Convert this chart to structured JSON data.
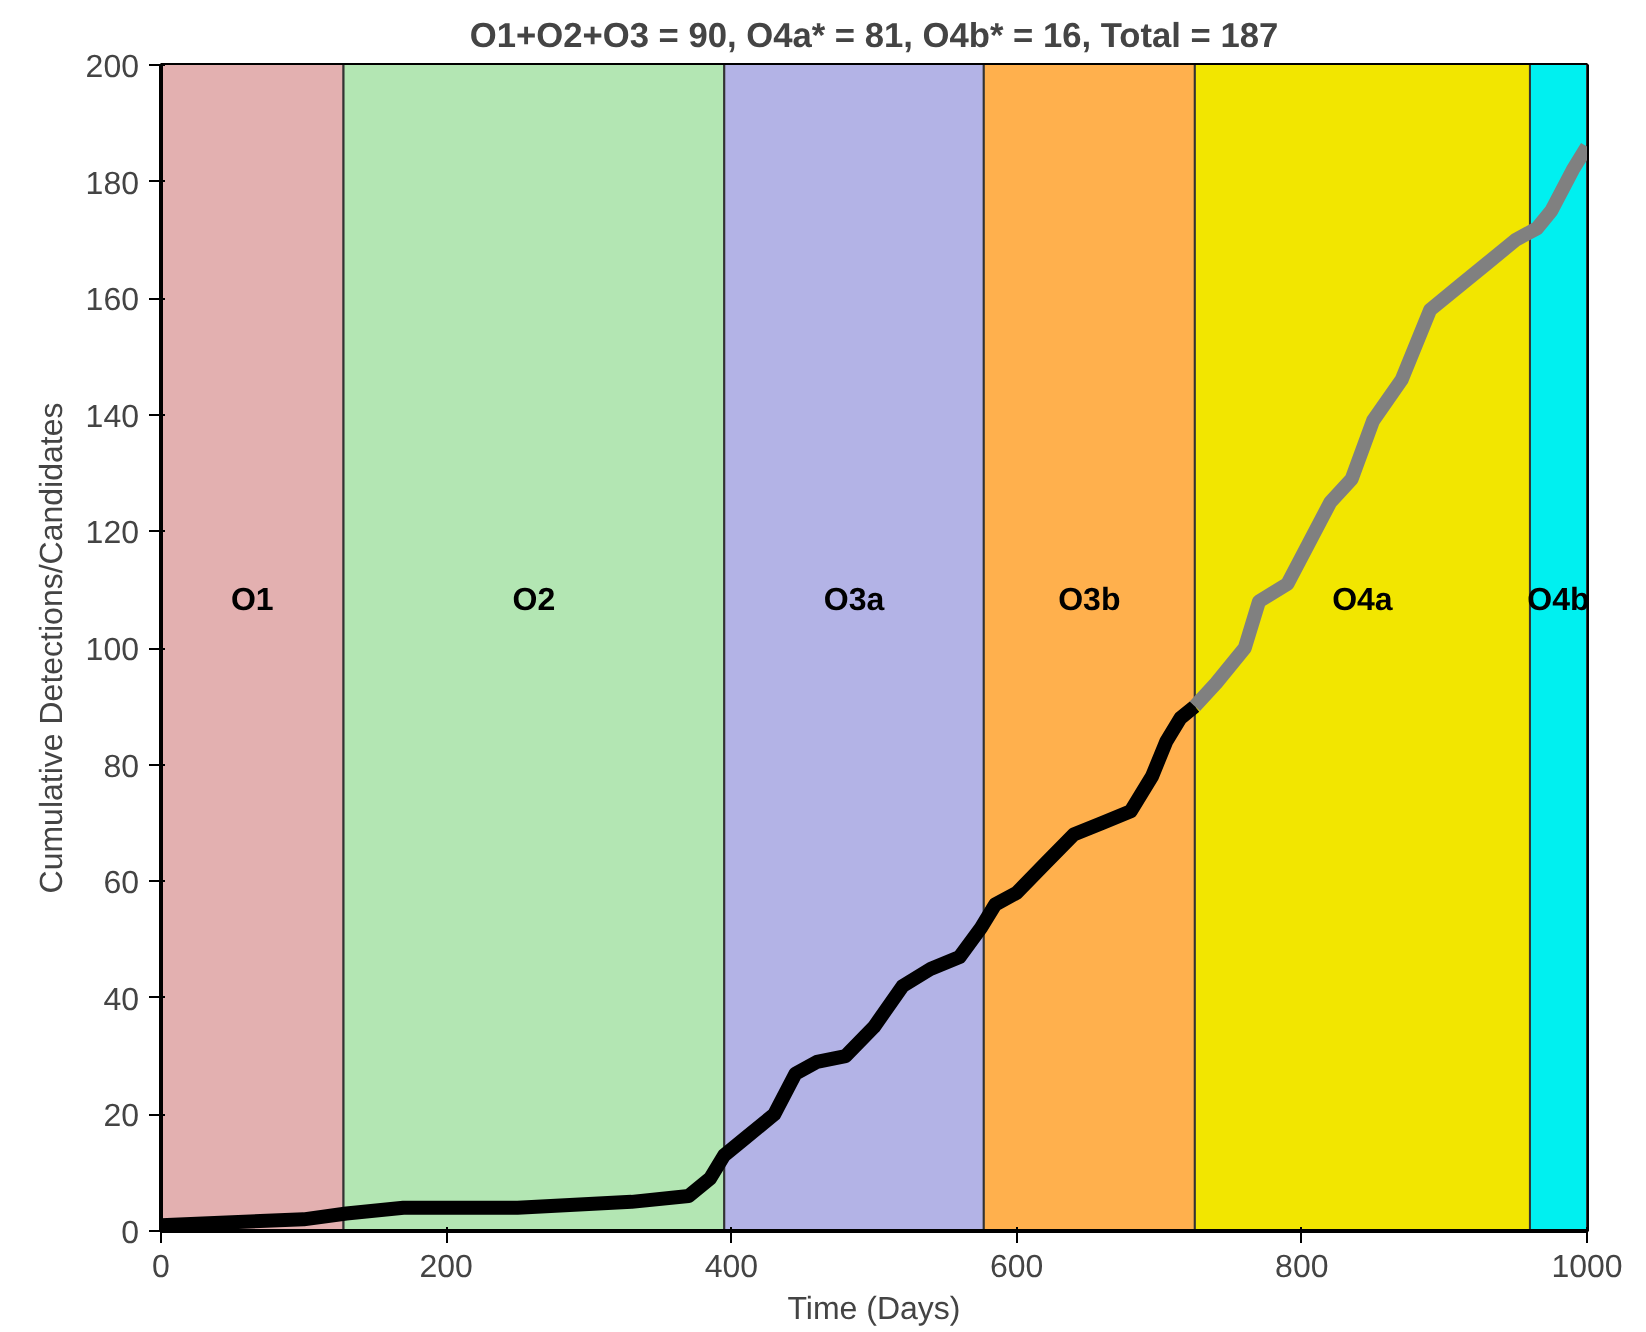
{
  "chart_data": {
    "type": "line",
    "title": "O1+O2+O3 = 90, O4a* = 81, O4b* = 16, Total = 187",
    "xlabel": "Time (Days)",
    "ylabel": "Cumulative Detections/Candidates",
    "xlim": [
      0,
      1000
    ],
    "ylim": [
      0,
      200
    ],
    "xticks": [
      0,
      200,
      400,
      600,
      800,
      1000
    ],
    "yticks": [
      0,
      20,
      40,
      60,
      80,
      100,
      120,
      140,
      160,
      180,
      200
    ],
    "bands": [
      {
        "axis": "x",
        "from": 0,
        "to": 128,
        "label": "O1",
        "color": "#e3b0b0"
      },
      {
        "axis": "x",
        "from": 128,
        "to": 395,
        "label": "O2",
        "color": "#b3e6b3"
      },
      {
        "axis": "x",
        "from": 395,
        "to": 577,
        "label": "O3a",
        "color": "#b3b3e6"
      },
      {
        "axis": "x",
        "from": 577,
        "to": 725,
        "label": "O3b",
        "color": "#ffb04d"
      },
      {
        "axis": "x",
        "from": 725,
        "to": 960,
        "label": "O4a",
        "color": "#f2e600"
      },
      {
        "axis": "x",
        "from": 960,
        "to": 1000,
        "label": "O4b",
        "color": "#00f0f0"
      }
    ],
    "series": [
      {
        "color": "#000000",
        "x": [
          0,
          50,
          100,
          130,
          170,
          250,
          330,
          370,
          385,
          395,
          410,
          430,
          445,
          460,
          480,
          500,
          520,
          540,
          560,
          575,
          585,
          600,
          620,
          640,
          660,
          680,
          695,
          705,
          715,
          725
        ],
        "values": [
          1,
          1.5,
          2,
          3,
          4,
          4,
          5,
          6,
          9,
          13,
          16,
          20,
          27,
          29,
          30,
          35,
          42,
          45,
          47,
          52,
          56,
          58,
          63,
          68,
          70,
          72,
          78,
          84,
          88,
          90
        ]
      },
      {
        "color": "#808080",
        "x": [
          725,
          740,
          760,
          770,
          790,
          805,
          820,
          835,
          850,
          870,
          890,
          910,
          930,
          950,
          965,
          975,
          990,
          1000
        ],
        "values": [
          90,
          94,
          100,
          108,
          111,
          118,
          125,
          129,
          139,
          146,
          158,
          162,
          166,
          170,
          172,
          175,
          182,
          186
        ]
      }
    ]
  }
}
